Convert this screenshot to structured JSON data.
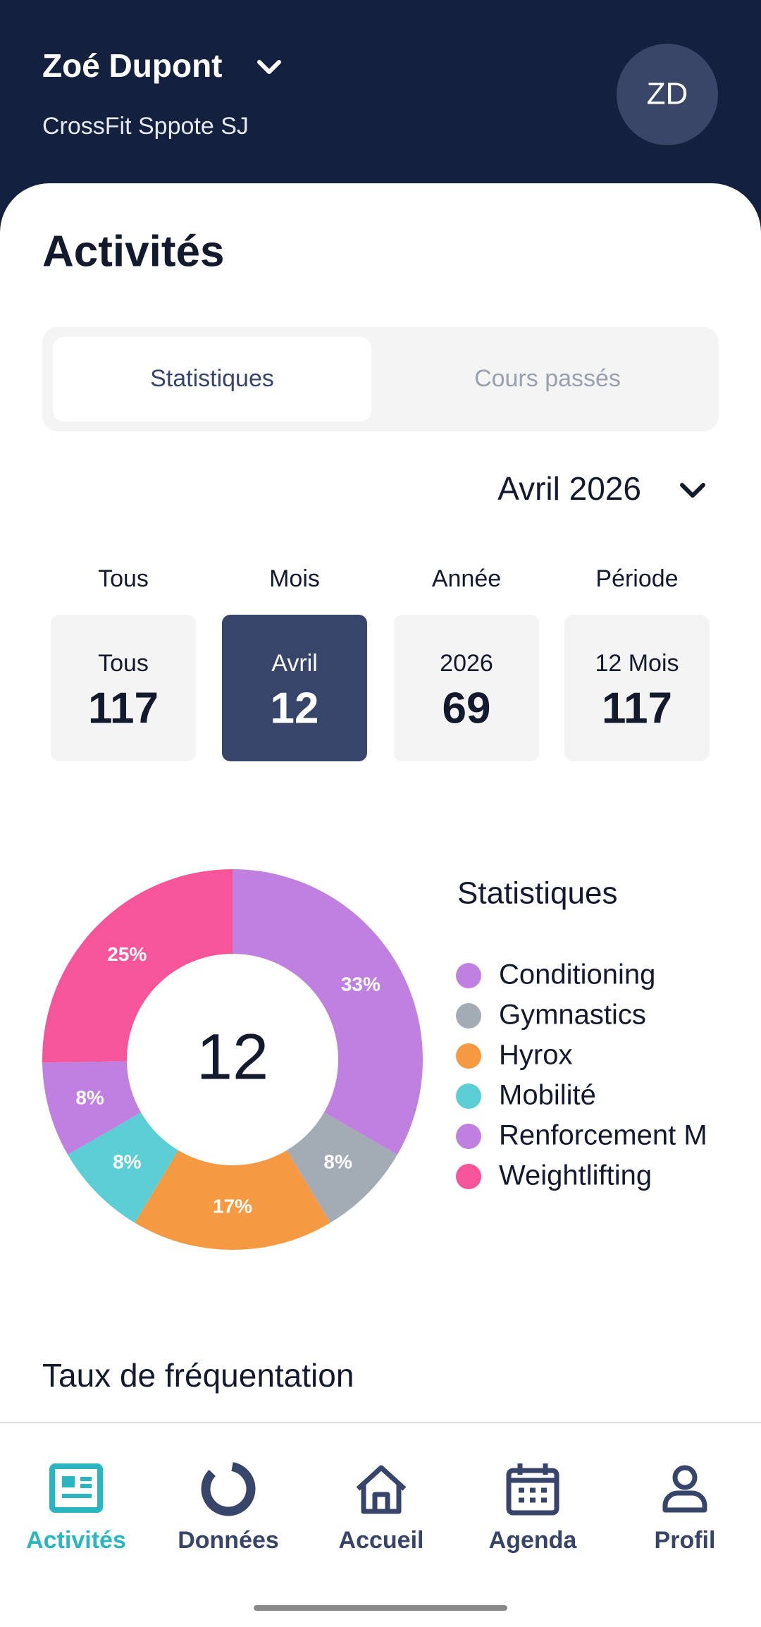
{
  "header": {
    "name": "Zoé Dupont",
    "gym": "CrossFit Sppote SJ",
    "avatar": "ZD"
  },
  "page_title": "Activités",
  "tabs": [
    "Statistiques",
    "Cours passés"
  ],
  "month_selector": "Avril 2026",
  "stat_cards": [
    {
      "heading": "Tous",
      "label": "Tous",
      "value": 117
    },
    {
      "heading": "Mois",
      "label": "Avril",
      "value": 12
    },
    {
      "heading": "Année",
      "label": "2026",
      "value": 69
    },
    {
      "heading": "Période",
      "label": "12 Mois",
      "value": 117
    }
  ],
  "chart_data": {
    "type": "donut",
    "legend_title": "Statistiques",
    "center_label": "12",
    "categories": [
      "Conditioning",
      "Gymnastics",
      "Hyrox",
      "Mobilité",
      "Renforcement M",
      "Weightlifting"
    ],
    "values": [
      33,
      8,
      17,
      8,
      8,
      25
    ],
    "value_labels": [
      "33%",
      "8%",
      "17%",
      "8%",
      "8%",
      "25%"
    ],
    "colors": [
      "#bf80e0",
      "#a3abb5",
      "#f59a42",
      "#5ccfd6",
      "#bf80e0",
      "#f7559a"
    ]
  },
  "section_title": "Taux de fréquentation",
  "nav": [
    "Activités",
    "Données",
    "Accueil",
    "Agenda",
    "Profil"
  ]
}
